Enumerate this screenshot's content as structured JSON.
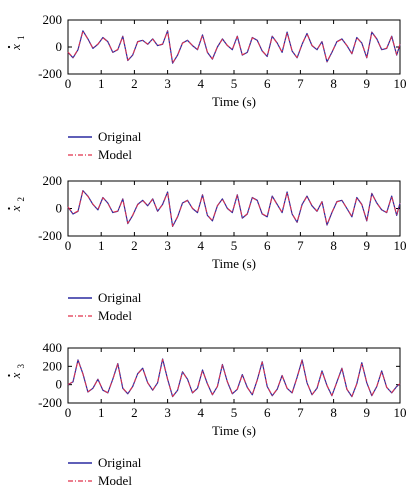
{
  "chart_data": [
    {
      "type": "line",
      "ylabel_symbol": "x",
      "ylabel_sub": "1",
      "xlabel": "Time (s)",
      "xlim": [
        0,
        10
      ],
      "ylim": [
        -200,
        200
      ],
      "xticks": [
        0,
        1,
        2,
        3,
        4,
        5,
        6,
        7,
        8,
        9,
        10
      ],
      "yticks": [
        200,
        0,
        -200
      ],
      "x": [
        0,
        0.15,
        0.3,
        0.45,
        0.6,
        0.75,
        0.9,
        1.05,
        1.2,
        1.35,
        1.5,
        1.65,
        1.8,
        1.95,
        2.1,
        2.25,
        2.4,
        2.55,
        2.7,
        2.85,
        3.0,
        3.15,
        3.3,
        3.45,
        3.6,
        3.75,
        3.9,
        4.05,
        4.2,
        4.35,
        4.5,
        4.65,
        4.8,
        4.95,
        5.1,
        5.25,
        5.4,
        5.55,
        5.7,
        5.85,
        6.0,
        6.15,
        6.3,
        6.45,
        6.6,
        6.75,
        6.9,
        7.05,
        7.2,
        7.35,
        7.5,
        7.65,
        7.8,
        7.95,
        8.1,
        8.25,
        8.4,
        8.55,
        8.7,
        8.85,
        9.0,
        9.15,
        9.3,
        9.45,
        9.6,
        9.75,
        9.9,
        10.0
      ],
      "series": [
        {
          "name": "Original",
          "color": "#2a2aa0",
          "style": "solid",
          "values": [
            -40,
            -80,
            -20,
            120,
            60,
            -10,
            20,
            70,
            40,
            -40,
            -20,
            80,
            -100,
            -60,
            40,
            50,
            20,
            60,
            10,
            20,
            120,
            -120,
            -60,
            30,
            50,
            10,
            -20,
            90,
            -40,
            -90,
            0,
            60,
            10,
            -20,
            80,
            -60,
            -40,
            70,
            50,
            -30,
            -70,
            80,
            30,
            -40,
            110,
            -30,
            -80,
            20,
            100,
            10,
            -20,
            40,
            -110,
            -40,
            40,
            60,
            10,
            -50,
            70,
            30,
            -80,
            110,
            60,
            -20,
            -10,
            80,
            -60,
            20
          ]
        },
        {
          "name": "Model",
          "color": "#e0304a",
          "style": "dashdot",
          "values": [
            -38,
            -78,
            -18,
            118,
            58,
            -8,
            22,
            68,
            38,
            -38,
            -18,
            78,
            -98,
            -58,
            38,
            48,
            22,
            58,
            12,
            22,
            118,
            -118,
            -58,
            28,
            48,
            12,
            -18,
            88,
            -38,
            -88,
            2,
            58,
            12,
            -18,
            78,
            -58,
            -38,
            68,
            48,
            -28,
            -68,
            78,
            28,
            -38,
            108,
            -28,
            -78,
            22,
            98,
            12,
            -18,
            38,
            -108,
            -38,
            38,
            58,
            12,
            -48,
            68,
            28,
            -78,
            108,
            58,
            -18,
            -8,
            78,
            -58,
            22
          ]
        }
      ],
      "legend": [
        "Original",
        "Model"
      ]
    },
    {
      "type": "line",
      "ylabel_symbol": "x",
      "ylabel_sub": "2",
      "xlabel": "Time (s)",
      "xlim": [
        0,
        10
      ],
      "ylim": [
        -200,
        200
      ],
      "xticks": [
        0,
        1,
        2,
        3,
        4,
        5,
        6,
        7,
        8,
        9,
        10
      ],
      "yticks": [
        200,
        0,
        -200
      ],
      "x": [
        0,
        0.15,
        0.3,
        0.45,
        0.6,
        0.75,
        0.9,
        1.05,
        1.2,
        1.35,
        1.5,
        1.65,
        1.8,
        1.95,
        2.1,
        2.25,
        2.4,
        2.55,
        2.7,
        2.85,
        3.0,
        3.15,
        3.3,
        3.45,
        3.6,
        3.75,
        3.9,
        4.05,
        4.2,
        4.35,
        4.5,
        4.65,
        4.8,
        4.95,
        5.1,
        5.25,
        5.4,
        5.55,
        5.7,
        5.85,
        6.0,
        6.15,
        6.3,
        6.45,
        6.6,
        6.75,
        6.9,
        7.05,
        7.2,
        7.35,
        7.5,
        7.65,
        7.8,
        7.95,
        8.1,
        8.25,
        8.4,
        8.55,
        8.7,
        8.85,
        9.0,
        9.15,
        9.3,
        9.45,
        9.6,
        9.75,
        9.9,
        10.0
      ],
      "series": [
        {
          "name": "Original",
          "color": "#2a2aa0",
          "style": "solid",
          "values": [
            10,
            -40,
            -20,
            130,
            90,
            30,
            -10,
            80,
            40,
            -30,
            -20,
            70,
            -110,
            -50,
            30,
            60,
            20,
            70,
            -20,
            30,
            120,
            -130,
            -60,
            40,
            60,
            0,
            -30,
            100,
            -50,
            -90,
            20,
            70,
            0,
            -30,
            100,
            -70,
            -40,
            80,
            60,
            -40,
            -60,
            90,
            30,
            -30,
            120,
            -40,
            -100,
            30,
            90,
            20,
            -20,
            50,
            -120,
            -30,
            50,
            60,
            0,
            -60,
            80,
            30,
            -90,
            110,
            40,
            -10,
            -30,
            90,
            -50,
            40
          ]
        },
        {
          "name": "Model",
          "color": "#e0304a",
          "style": "dashdot",
          "values": [
            12,
            -38,
            -18,
            128,
            88,
            32,
            -8,
            78,
            38,
            -28,
            -18,
            68,
            -108,
            -48,
            28,
            58,
            22,
            68,
            -18,
            28,
            118,
            -128,
            -58,
            38,
            58,
            2,
            -28,
            98,
            -48,
            -88,
            22,
            68,
            2,
            -28,
            98,
            -68,
            -38,
            78,
            58,
            -38,
            -58,
            88,
            28,
            -28,
            118,
            -38,
            -98,
            28,
            88,
            22,
            -18,
            48,
            -118,
            -28,
            48,
            58,
            2,
            -58,
            78,
            28,
            -88,
            108,
            38,
            -8,
            -28,
            88,
            -48,
            38
          ]
        }
      ],
      "legend": [
        "Original",
        "Model"
      ]
    },
    {
      "type": "line",
      "ylabel_symbol": "x",
      "ylabel_sub": "3",
      "xlabel": "Time (s)",
      "xlim": [
        0,
        10
      ],
      "ylim": [
        -200,
        400
      ],
      "xticks": [
        0,
        1,
        2,
        3,
        4,
        5,
        6,
        7,
        8,
        9,
        10
      ],
      "yticks": [
        400,
        200,
        0,
        -200
      ],
      "x": [
        0,
        0.15,
        0.3,
        0.45,
        0.6,
        0.75,
        0.9,
        1.05,
        1.2,
        1.35,
        1.5,
        1.65,
        1.8,
        1.95,
        2.1,
        2.25,
        2.4,
        2.55,
        2.7,
        2.85,
        3.0,
        3.15,
        3.3,
        3.45,
        3.6,
        3.75,
        3.9,
        4.05,
        4.2,
        4.35,
        4.5,
        4.65,
        4.8,
        4.95,
        5.1,
        5.25,
        5.4,
        5.55,
        5.7,
        5.85,
        6.0,
        6.15,
        6.3,
        6.45,
        6.6,
        6.75,
        6.9,
        7.05,
        7.2,
        7.35,
        7.5,
        7.65,
        7.8,
        7.95,
        8.1,
        8.25,
        8.4,
        8.55,
        8.7,
        8.85,
        9.0,
        9.15,
        9.3,
        9.45,
        9.6,
        9.75,
        9.9,
        10.0
      ],
      "series": [
        {
          "name": "Original",
          "color": "#2a2aa0",
          "style": "solid",
          "values": [
            0,
            30,
            270,
            120,
            -80,
            -40,
            60,
            -60,
            -90,
            60,
            230,
            -40,
            -100,
            -20,
            120,
            180,
            20,
            -60,
            20,
            280,
            60,
            -130,
            -60,
            140,
            60,
            -90,
            -40,
            160,
            10,
            -110,
            -20,
            220,
            30,
            -100,
            -50,
            110,
            -30,
            -110,
            50,
            250,
            -20,
            -120,
            -50,
            100,
            -40,
            -90,
            80,
            270,
            20,
            -110,
            -40,
            150,
            -10,
            -120,
            30,
            180,
            -50,
            -130,
            10,
            240,
            20,
            -120,
            -20,
            150,
            -30,
            -90,
            -20,
            10
          ]
        },
        {
          "name": "Model",
          "color": "#e0304a",
          "style": "dashdot",
          "values": [
            2,
            32,
            266,
            118,
            -78,
            -38,
            58,
            -58,
            -88,
            58,
            226,
            -38,
            -98,
            -18,
            118,
            176,
            22,
            -58,
            22,
            276,
            58,
            -128,
            -58,
            138,
            58,
            -88,
            -38,
            156,
            12,
            -108,
            -18,
            216,
            32,
            -98,
            -48,
            108,
            -28,
            -108,
            48,
            246,
            -18,
            -118,
            -48,
            98,
            -38,
            -88,
            78,
            266,
            22,
            -108,
            -38,
            146,
            -8,
            -118,
            28,
            176,
            -48,
            -128,
            12,
            236,
            22,
            -118,
            -18,
            146,
            -28,
            -88,
            -18,
            12
          ]
        }
      ],
      "legend": [
        "Original",
        "Model"
      ]
    }
  ]
}
